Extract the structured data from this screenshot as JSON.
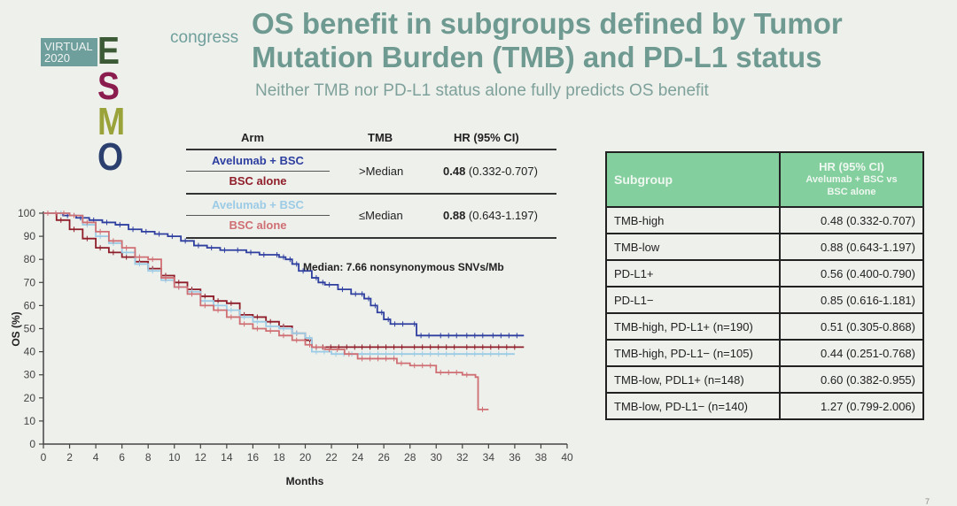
{
  "logo": {
    "virtual": "VIRTUAL",
    "year": "2020",
    "esmo_letters": [
      {
        "ch": "E",
        "color": "#3c5a35"
      },
      {
        "ch": "S",
        "color": "#8a1d4e"
      },
      {
        "ch": "M",
        "color": "#9aa23a"
      },
      {
        "ch": "O",
        "color": "#2a3f6e"
      }
    ],
    "congress": "congress"
  },
  "title": "OS benefit in subgroups defined by Tumor Mutation Burden (TMB) and PD-L1 status",
  "subtitle": "Neither TMB nor PD-L1 status alone fully predicts OS benefit",
  "arm_table": {
    "headers": {
      "arm": "Arm",
      "tmb": "TMB",
      "hr": "HR (95% CI)"
    },
    "groups": [
      {
        "arm1": "Avelumab + BSC",
        "arm1_color": "#2e3fa0",
        "arm2": "BSC alone",
        "arm2_color": "#8f1e2a",
        "tmb": ">Median",
        "hr_bold": "0.48",
        "hr_ci": " (0.332-0.707)"
      },
      {
        "arm1": "Avelumab + BSC",
        "arm1_color": "#9ccbe6",
        "arm2": "BSC alone",
        "arm2_color": "#cf6f74",
        "tmb": "≤Median",
        "hr_bold": "0.88",
        "hr_ci": " (0.643-1.197)"
      }
    ]
  },
  "subgroup_table": {
    "header_bg": "#84cf9e",
    "col1": "Subgroup",
    "col2_line1": "HR (95% CI)",
    "col2_line2": "Avelumab + BSC vs",
    "col2_line3": "BSC alone",
    "rows": [
      {
        "subgroup": "TMB-high",
        "hr": "0.48 (0.332-0.707)"
      },
      {
        "subgroup": "TMB-low",
        "hr": "0.88 (0.643-1.197)"
      },
      {
        "subgroup": "PD-L1+",
        "hr": "0.56 (0.400-0.790)"
      },
      {
        "subgroup": "PD-L1−",
        "hr": "0.85 (0.616-1.181)"
      },
      {
        "subgroup": "TMB-high, PD-L1+ (n=190)",
        "hr": "0.51 (0.305-0.868)"
      },
      {
        "subgroup": "TMB-high, PD-L1− (n=105)",
        "hr": "0.44 (0.251-0.768)"
      },
      {
        "subgroup": "TMB-low, PDL1+ (n=148)",
        "hr": "0.60 (0.382-0.955)"
      },
      {
        "subgroup": "TMB-low, PD-L1− (n=140)",
        "hr": "1.27 (0.799-2.006)"
      }
    ]
  },
  "page_number": "7",
  "chart_data": {
    "type": "line",
    "title": "",
    "xlabel": "Months",
    "ylabel": "OS (%)",
    "xlim": [
      0,
      40
    ],
    "ylim": [
      0,
      100
    ],
    "xticks": [
      0,
      2,
      4,
      6,
      8,
      10,
      12,
      14,
      16,
      18,
      20,
      22,
      24,
      26,
      28,
      30,
      32,
      34,
      36,
      38,
      40
    ],
    "yticks": [
      0,
      10,
      20,
      30,
      40,
      50,
      60,
      70,
      80,
      90,
      100
    ],
    "grid": false,
    "annotation": "Median: 7.66 nonsynonymous SNVs/Mb",
    "series": [
      {
        "name": "Avelumab + BSC (TMB >Median)",
        "color": "#2e3fa0",
        "x": [
          0,
          1.5,
          2.5,
          3.5,
          4.5,
          5.5,
          6.5,
          7.5,
          8.5,
          9.5,
          10.5,
          11.5,
          12.5,
          13.5,
          14.5,
          15.5,
          16.5,
          17.5,
          18,
          18.5,
          19,
          19.5,
          20.5,
          21,
          21.5,
          22.5,
          23.5,
          24,
          24.5,
          25,
          25.5,
          26,
          26.5,
          28,
          28.5,
          30,
          32,
          34,
          36.7
        ],
        "y": [
          100,
          99,
          98,
          97,
          96,
          95,
          93,
          92,
          91,
          90,
          88,
          86,
          85,
          84,
          84,
          83,
          82,
          82,
          81,
          80,
          78,
          75,
          72,
          70,
          69,
          67,
          65,
          65,
          63,
          60,
          57,
          54,
          52,
          52,
          47,
          47,
          47,
          47,
          47
        ]
      },
      {
        "name": "BSC alone (TMB >Median)",
        "color": "#8f1e2a",
        "x": [
          0,
          1,
          2,
          3,
          4,
          5,
          6,
          7,
          8,
          9,
          10,
          11,
          12,
          13,
          14,
          15,
          16,
          17,
          18,
          19,
          20,
          20.5,
          21,
          24,
          28,
          32,
          36.7
        ],
        "y": [
          100,
          97,
          93,
          89,
          85,
          83,
          81,
          79,
          76,
          73,
          70,
          67,
          64,
          62,
          61,
          56,
          55,
          53,
          51,
          48,
          45,
          42,
          42,
          42,
          42,
          42,
          42
        ]
      },
      {
        "name": "Avelumab + BSC (TMB ≤Median)",
        "color": "#9ccbe6",
        "x": [
          0,
          1,
          2,
          3,
          4,
          5,
          6,
          7,
          8,
          9,
          10,
          11,
          12,
          13,
          14,
          15,
          16,
          17,
          18,
          19,
          20,
          20.5,
          22,
          24,
          28,
          32,
          36
        ],
        "y": [
          100,
          100,
          99,
          95,
          90,
          87,
          83,
          78,
          75,
          71,
          68,
          66,
          62,
          60,
          58,
          55,
          53,
          51,
          50,
          48,
          46,
          40,
          39,
          39,
          39,
          39,
          39
        ]
      },
      {
        "name": "BSC alone (TMB ≤Median)",
        "color": "#cf6f74",
        "x": [
          0,
          2,
          3,
          4,
          5,
          6,
          7,
          8,
          9,
          10,
          11,
          12,
          13,
          14,
          15,
          16,
          17,
          18,
          19,
          20,
          20.5,
          21.5,
          23,
          24,
          27,
          28,
          30,
          32,
          33,
          33.2,
          34
        ],
        "y": [
          100,
          99,
          96,
          92,
          88,
          85,
          81,
          80,
          72,
          68,
          65,
          60,
          58,
          55,
          52,
          50,
          49,
          47,
          45,
          43,
          42,
          41,
          39,
          37,
          35,
          34,
          31,
          30,
          29,
          15,
          15
        ]
      }
    ]
  }
}
